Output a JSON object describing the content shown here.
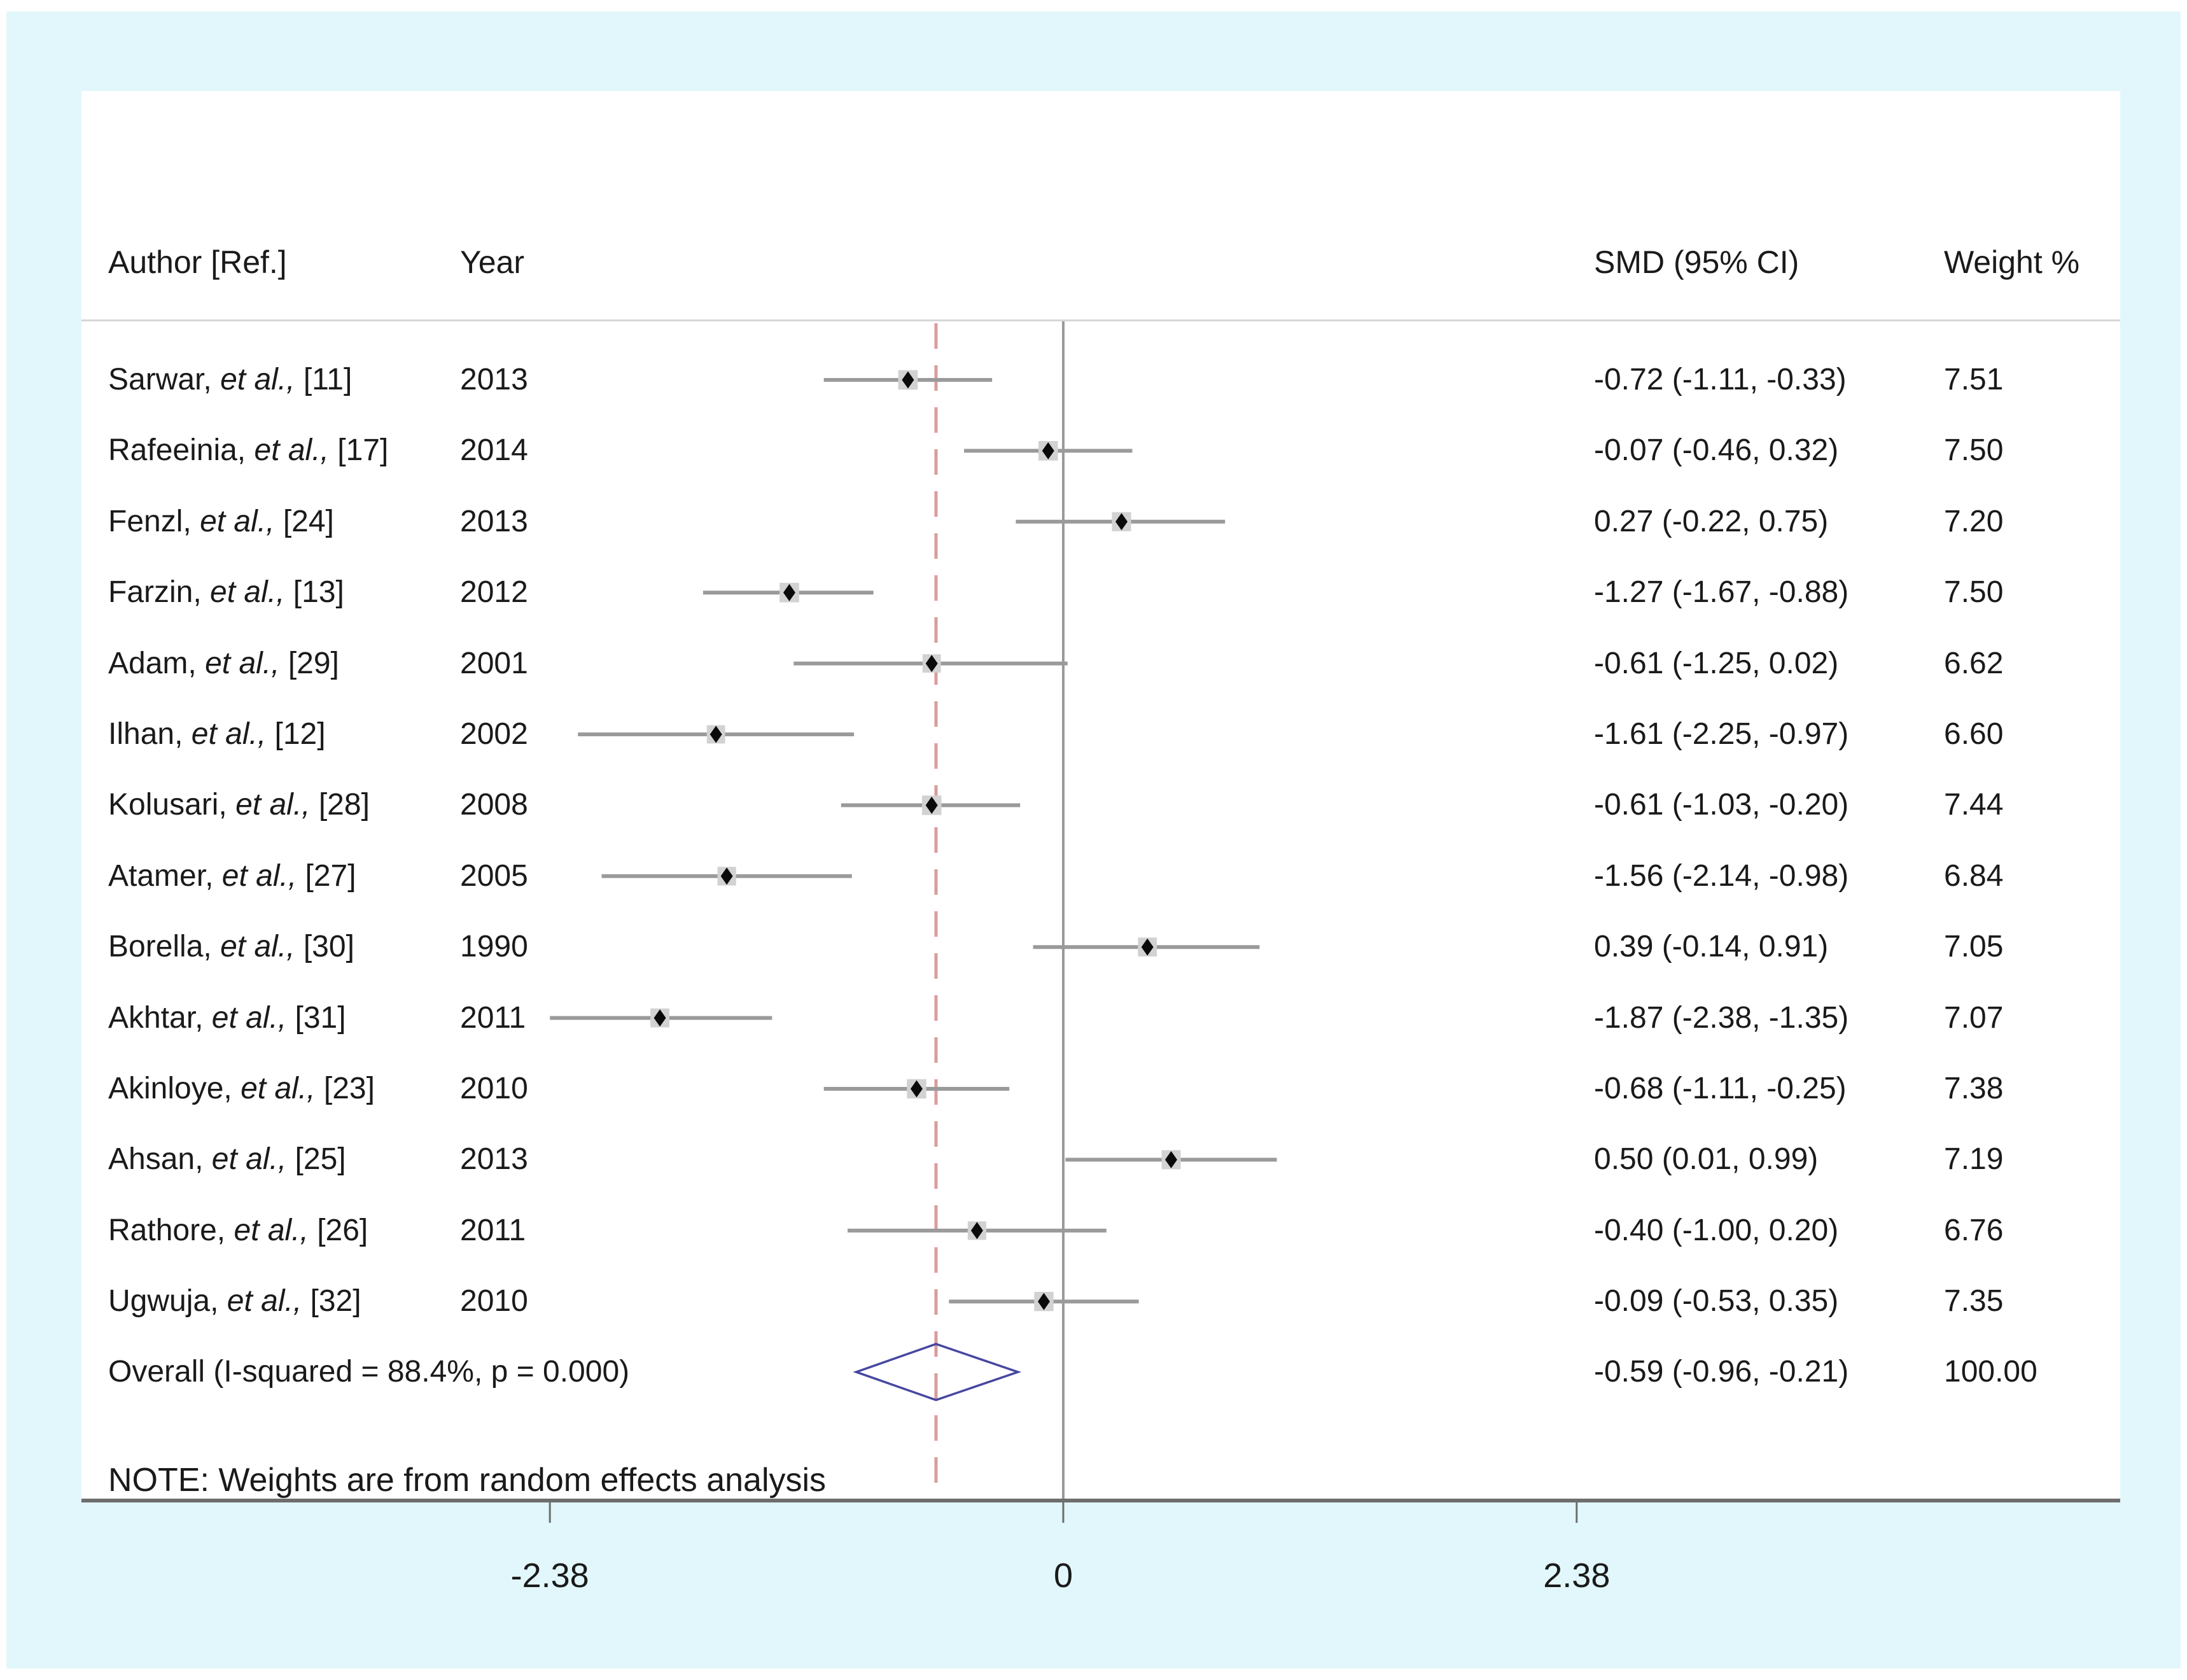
{
  "header": {
    "author": "Author [Ref.]",
    "year": "Year",
    "smd": "SMD (95% CI)",
    "weight": "Weight %"
  },
  "note": "NOTE: Weights are from random effects analysis",
  "colors": {
    "frame_background": "#e2f7fb",
    "panel_background": "#ffffff",
    "separator": "#d7d7d7",
    "zero_line": "#9a9a9a",
    "overall_dashed_line": "#db9c9c",
    "ci_line": "#9a9a9a",
    "weight_box": "#d2d2d2",
    "point_marker": "#0a0a0a",
    "overall_diamond_outline": "#4747a1",
    "axis": "#6e6e6e",
    "text": "#1a1a1a"
  },
  "chart_data": {
    "type": "forest",
    "title": "",
    "xlabel": "",
    "x_ticks": [
      -2.38,
      0,
      2.38
    ],
    "x_tick_labels": [
      "-2.38",
      "0",
      "2.38"
    ],
    "axis_range": [
      -2.38,
      2.38
    ],
    "null_line_x": 0,
    "overall_line_x": -0.59,
    "legend_position": "none",
    "grid": false,
    "studies": [
      {
        "name": "Sarwar,",
        "etal": "et al.,",
        "ref": "[11]",
        "year": "2013",
        "est": -0.72,
        "lo": -1.11,
        "hi": -0.33,
        "weight": 7.51,
        "smd_label": "-0.72 (-1.11, -0.33)",
        "weight_label": "7.51"
      },
      {
        "name": "Rafeeinia,",
        "etal": "et al.,",
        "ref": "[17]",
        "year": "2014",
        "est": -0.07,
        "lo": -0.46,
        "hi": 0.32,
        "weight": 7.5,
        "smd_label": "-0.07 (-0.46, 0.32)",
        "weight_label": "7.50"
      },
      {
        "name": "Fenzl,",
        "etal": "et al.,",
        "ref": "[24]",
        "year": "2013",
        "est": 0.27,
        "lo": -0.22,
        "hi": 0.75,
        "weight": 7.2,
        "smd_label": "0.27 (-0.22, 0.75)",
        "weight_label": "7.20"
      },
      {
        "name": "Farzin,",
        "etal": "et al.,",
        "ref": "[13]",
        "year": "2012",
        "est": -1.27,
        "lo": -1.67,
        "hi": -0.88,
        "weight": 7.5,
        "smd_label": "-1.27 (-1.67, -0.88)",
        "weight_label": "7.50"
      },
      {
        "name": "Adam,",
        "etal": "et al.,",
        "ref": "[29]",
        "year": "2001",
        "est": -0.61,
        "lo": -1.25,
        "hi": 0.02,
        "weight": 6.62,
        "smd_label": "-0.61 (-1.25, 0.02)",
        "weight_label": "6.62"
      },
      {
        "name": "Ilhan,",
        "etal": "et al.,",
        "ref": "[12]",
        "year": "2002",
        "est": -1.61,
        "lo": -2.25,
        "hi": -0.97,
        "weight": 6.6,
        "smd_label": "-1.61 (-2.25, -0.97)",
        "weight_label": "6.60"
      },
      {
        "name": "Kolusari,",
        "etal": "et al.,",
        "ref": "[28]",
        "year": "2008",
        "est": -0.61,
        "lo": -1.03,
        "hi": -0.2,
        "weight": 7.44,
        "smd_label": "-0.61 (-1.03, -0.20)",
        "weight_label": "7.44"
      },
      {
        "name": "Atamer,",
        "etal": "et al.,",
        "ref": "[27]",
        "year": "2005",
        "est": -1.56,
        "lo": -2.14,
        "hi": -0.98,
        "weight": 6.84,
        "smd_label": "-1.56 (-2.14, -0.98)",
        "weight_label": "6.84"
      },
      {
        "name": "Borella,",
        "etal": "et al.,",
        "ref": "[30]",
        "year": "1990",
        "est": 0.39,
        "lo": -0.14,
        "hi": 0.91,
        "weight": 7.05,
        "smd_label": "0.39 (-0.14, 0.91)",
        "weight_label": "7.05"
      },
      {
        "name": "Akhtar,",
        "etal": "et al.,",
        "ref": "[31]",
        "year": "2011",
        "est": -1.87,
        "lo": -2.38,
        "hi": -1.35,
        "weight": 7.07,
        "smd_label": "-1.87 (-2.38, -1.35)",
        "weight_label": "7.07"
      },
      {
        "name": "Akinloye,",
        "etal": "et al.,",
        "ref": "[23]",
        "year": "2010",
        "est": -0.68,
        "lo": -1.11,
        "hi": -0.25,
        "weight": 7.38,
        "smd_label": "-0.68 (-1.11, -0.25)",
        "weight_label": "7.38"
      },
      {
        "name": "Ahsan,",
        "etal": "et al.,",
        "ref": "[25]",
        "year": "2013",
        "est": 0.5,
        "lo": 0.01,
        "hi": 0.99,
        "weight": 7.19,
        "smd_label": "0.50 (0.01, 0.99)",
        "weight_label": "7.19"
      },
      {
        "name": "Rathore,",
        "etal": "et al.,",
        "ref": "[26]",
        "year": "2011",
        "est": -0.4,
        "lo": -1.0,
        "hi": 0.2,
        "weight": 6.76,
        "smd_label": "-0.40 (-1.00, 0.20)",
        "weight_label": "6.76"
      },
      {
        "name": "Ugwuja,",
        "etal": "et al.,",
        "ref": "[32]",
        "year": "2010",
        "est": -0.09,
        "lo": -0.53,
        "hi": 0.35,
        "weight": 7.35,
        "smd_label": "-0.09 (-0.53, 0.35)",
        "weight_label": "7.35"
      }
    ],
    "overall": {
      "label": "Overall  (I-squared = 88.4%, p = 0.000)",
      "est": -0.59,
      "lo": -0.96,
      "hi": -0.21,
      "smd_label": "-0.59 (-0.96, -0.21)",
      "weight_label": "100.00"
    }
  }
}
